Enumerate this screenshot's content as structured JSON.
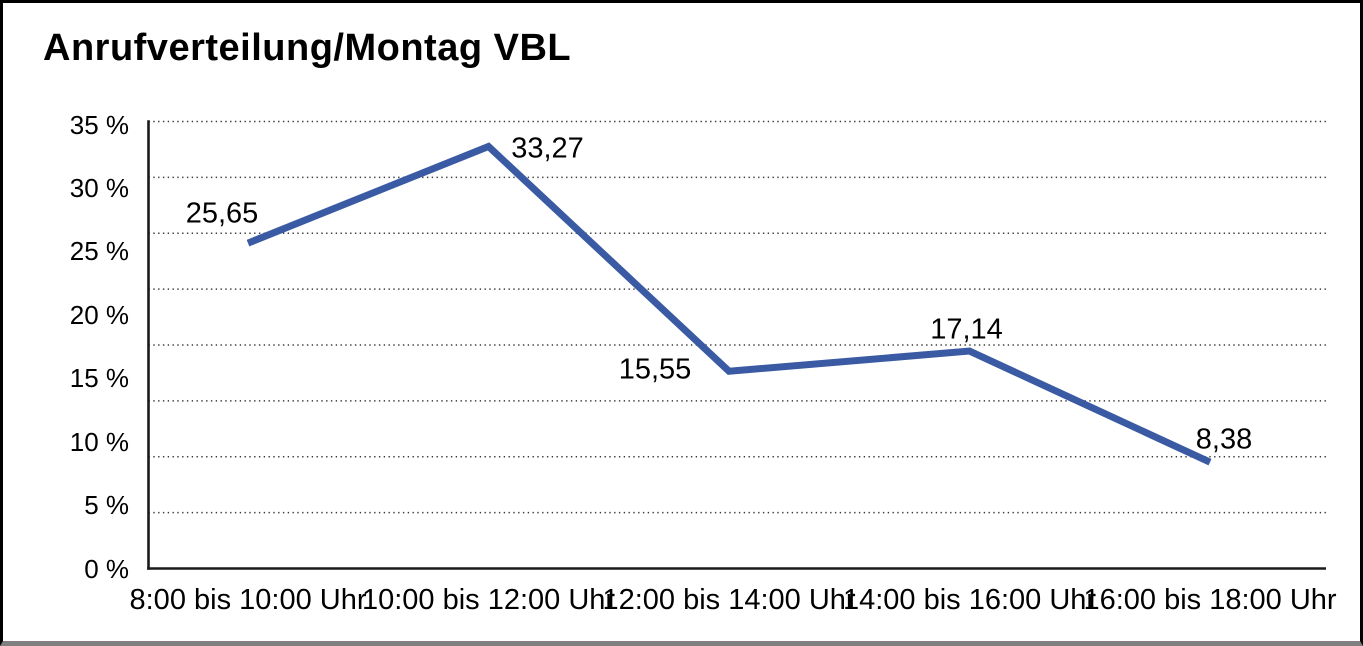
{
  "chart_data": {
    "type": "line",
    "title": "Anrufverteilung/Montag VBL",
    "categories": [
      "8:00 bis 10:00 Uhr",
      "10:00 bis 12:00 Uhr",
      "12:00 bis 14:00 Uhr",
      "14:00 bis 16:00 Uhr",
      "16:00 bis 18:00 Uhr"
    ],
    "values": [
      25.65,
      33.27,
      15.55,
      17.14,
      8.38
    ],
    "value_labels": [
      "25,65",
      "33,27",
      "15,55",
      "17,14",
      "8,38"
    ],
    "y_ticks": [
      "35 %",
      "30 %",
      "25 %",
      "20 %",
      "15 %",
      "10 %",
      "5 %",
      "0 %"
    ],
    "ylim": [
      0,
      35
    ],
    "y_tick_step": 5,
    "xlabel": "",
    "ylabel": "",
    "grid": "horizontal-dotted",
    "legend": "none",
    "line_color": "#3A5BA4",
    "axis_color": "#1a1a1a",
    "gridline_color": "#3c3c3c",
    "text_color": "#000000"
  }
}
